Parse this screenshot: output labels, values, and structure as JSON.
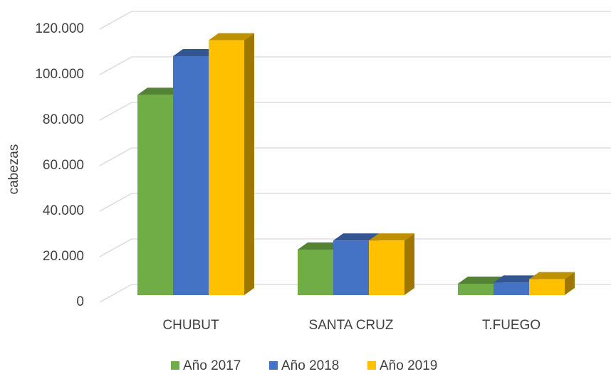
{
  "chart_data": {
    "type": "bar3d",
    "y_label": "cabezas",
    "categories": [
      "CHUBUT",
      "SANTA CRUZ",
      "T.FUEGO"
    ],
    "series": [
      {
        "name": "Año 2017",
        "color": "#70ad47",
        "values": [
          88000,
          20000,
          5000
        ]
      },
      {
        "name": "Año 2018",
        "color": "#4472c4",
        "values": [
          105000,
          24000,
          5500
        ]
      },
      {
        "name": "Año 2019",
        "color": "#ffc000",
        "values": [
          112000,
          24000,
          7000
        ]
      }
    ],
    "ylim": [
      0,
      120000
    ],
    "yticks": [
      0,
      {
        "value": 20000,
        "label": "20.000"
      },
      {
        "value": 40000,
        "label": "40.000"
      },
      {
        "value": 60000,
        "label": "60.000"
      },
      {
        "value": 80000,
        "label": "80.000"
      },
      {
        "value": 100000,
        "label": "100.000"
      },
      {
        "value": 120000,
        "label": "120.000"
      }
    ],
    "grid": true,
    "legend": "bottom"
  }
}
